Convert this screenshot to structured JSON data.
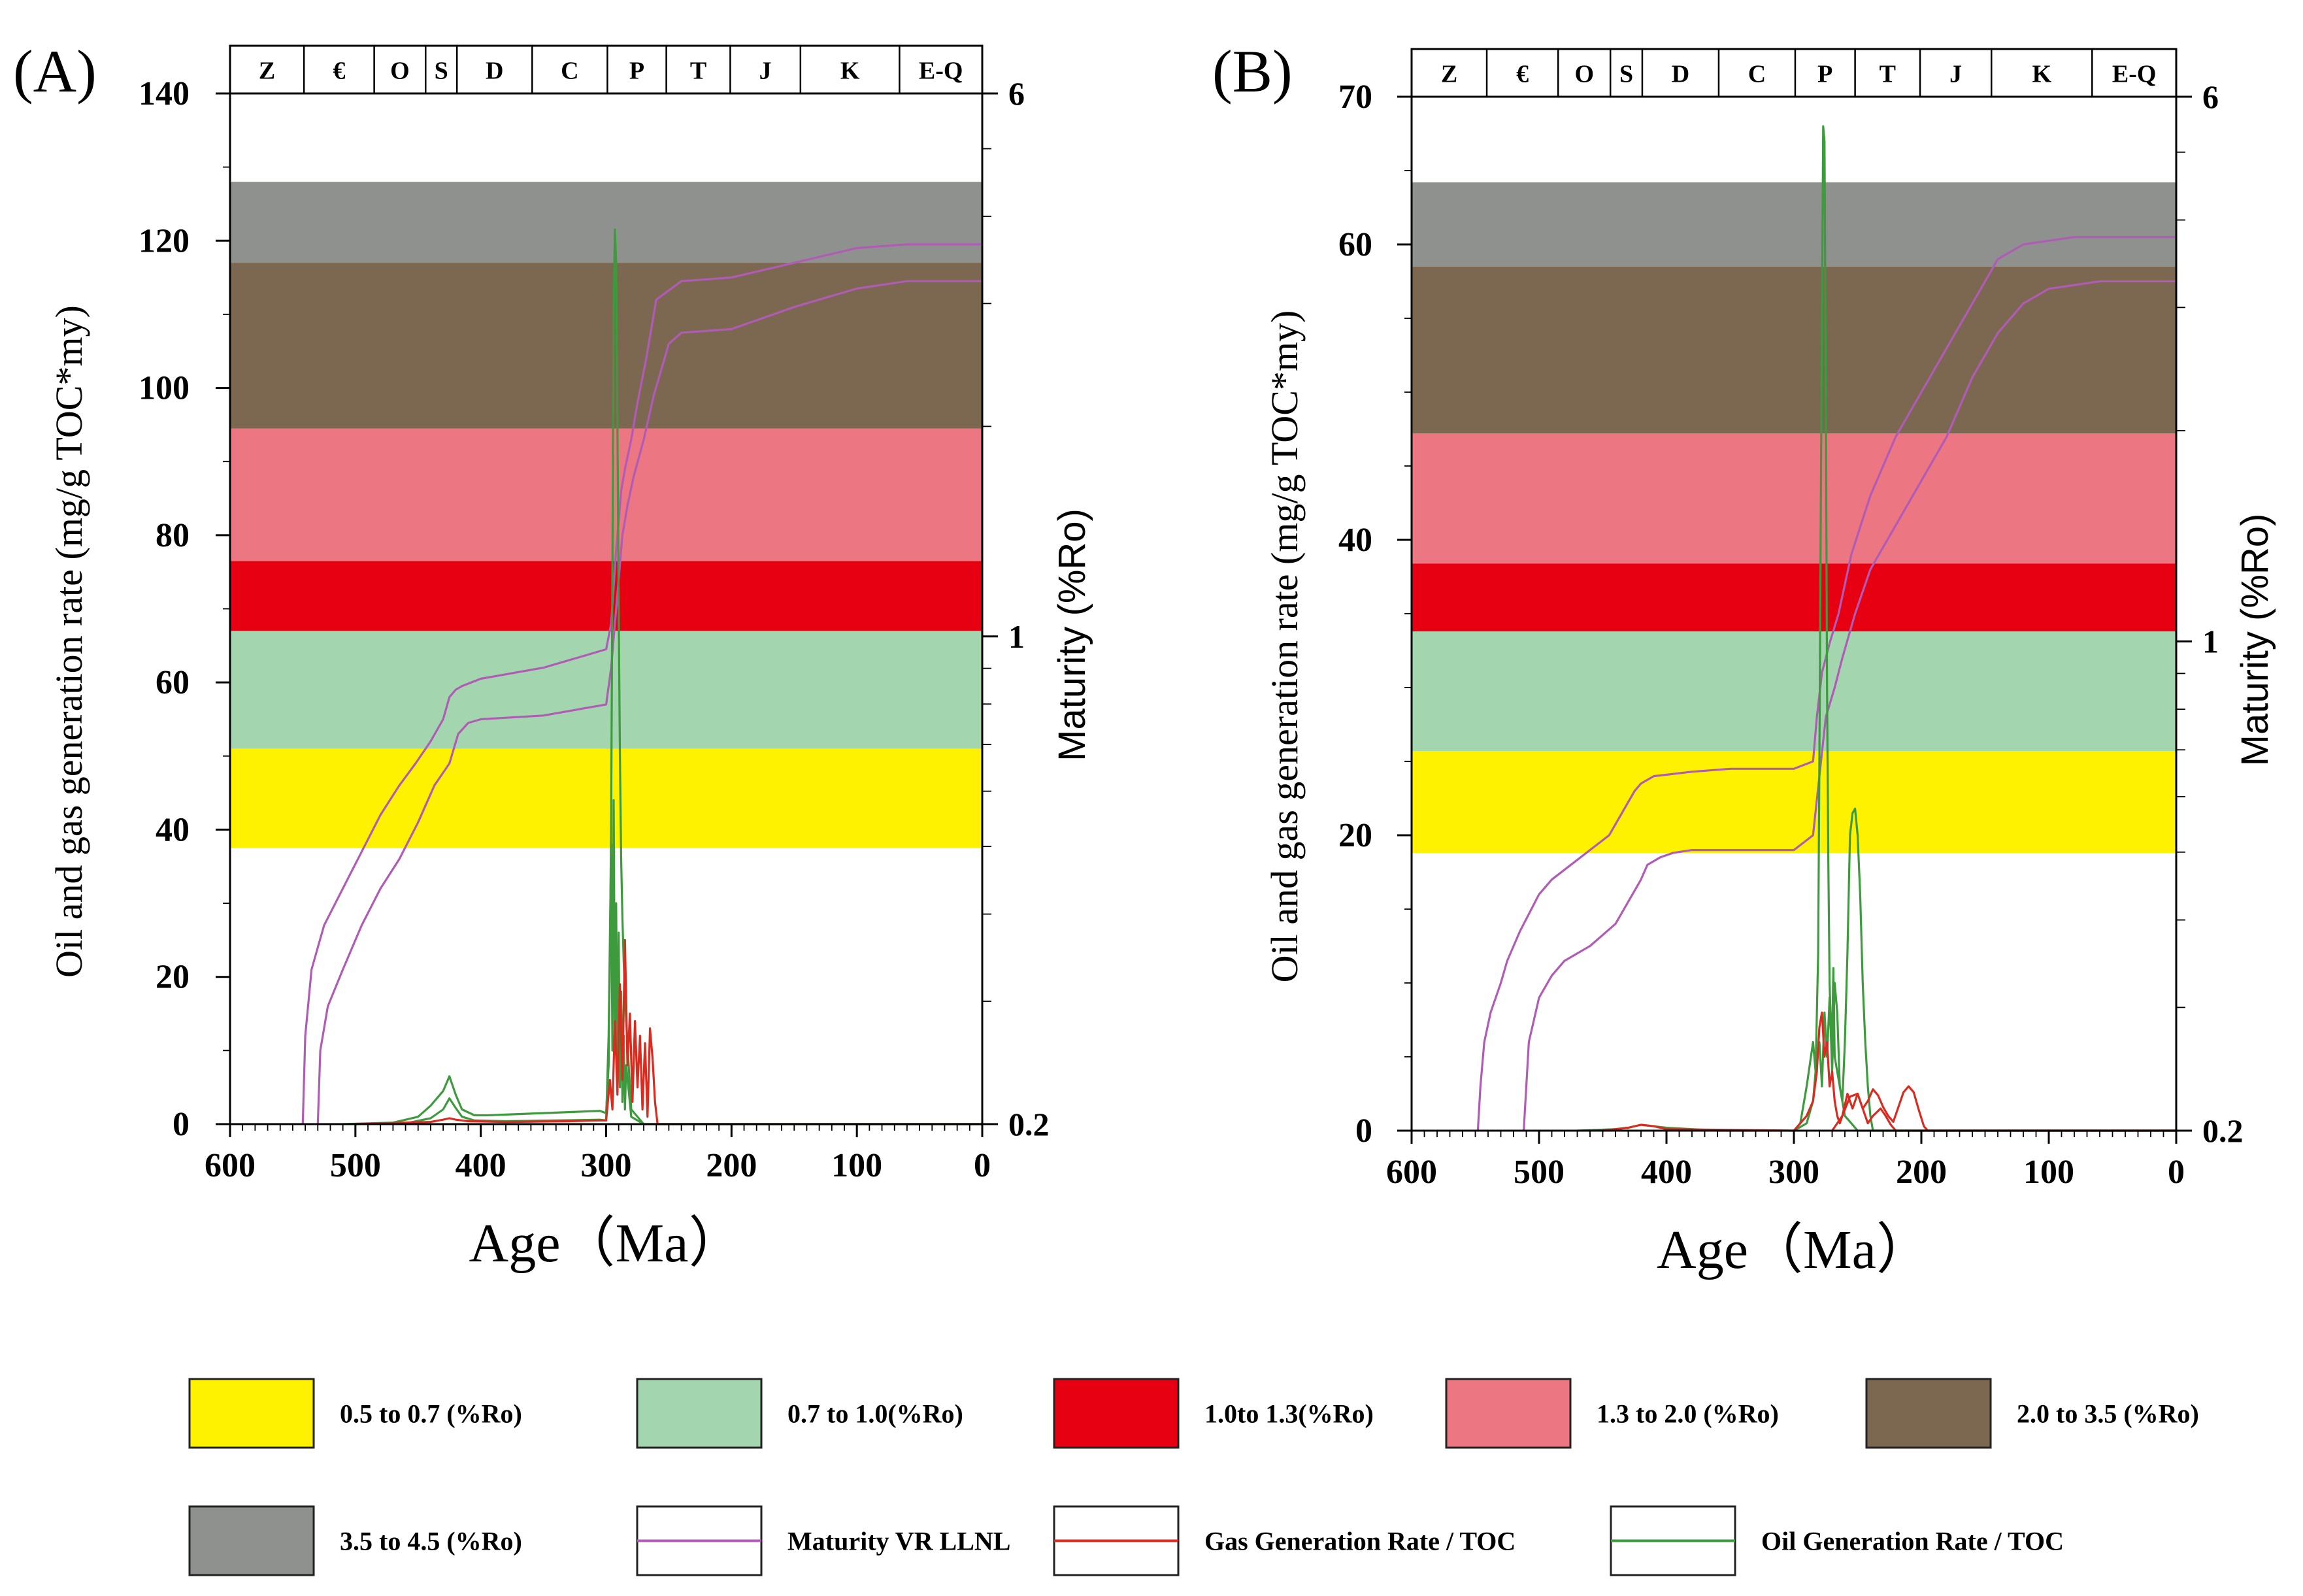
{
  "chart_data": [
    {
      "type": "line",
      "panel_label": "(A)",
      "title": "",
      "xlabel": "Age（Ma）",
      "ylabel": "Oil and gas generation rate (mg/g TOC*my)",
      "y2label": "Maturity (%Ro)",
      "xlim": [
        600,
        0
      ],
      "ylim": [
        0,
        140
      ],
      "y2lim": [
        0.2,
        6
      ],
      "y2scale": "log",
      "x_ticks": [
        "600",
        "500",
        "400",
        "300",
        "200",
        "100",
        "0"
      ],
      "y_ticks": [
        "0",
        "20",
        "40",
        "60",
        "80",
        "100",
        "120",
        "140"
      ],
      "y2_ticks": [
        "0.2",
        "1",
        "6"
      ],
      "periods": [
        {
          "label": "Z",
          "start": 635,
          "end": 541
        },
        {
          "label": "€",
          "start": 541,
          "end": 485
        },
        {
          "label": "O",
          "start": 485,
          "end": 444
        },
        {
          "label": "S",
          "start": 444,
          "end": 419
        },
        {
          "label": "D",
          "start": 419,
          "end": 359
        },
        {
          "label": "C",
          "start": 359,
          "end": 299
        },
        {
          "label": "P",
          "start": 299,
          "end": 252
        },
        {
          "label": "T",
          "start": 252,
          "end": 201
        },
        {
          "label": "J",
          "start": 201,
          "end": 145
        },
        {
          "label": "K",
          "start": 145,
          "end": 66
        },
        {
          "label": "E-Q",
          "start": 66,
          "end": 0
        }
      ],
      "bands": [
        {
          "name": "0.5 to 0.7 (%Ro)",
          "from": 37.5,
          "to": 51,
          "color": "#fff200"
        },
        {
          "name": "0.7 to 1.0(%Ro)",
          "from": 51,
          "to": 67,
          "color": "#a3d6ae"
        },
        {
          "name": "1.0to 1.3(%Ro)",
          "from": 67,
          "to": 76.5,
          "color": "#e60012"
        },
        {
          "name": "1.3 to 2.0 (%Ro)",
          "from": 76.5,
          "to": 94.5,
          "color": "#ec7682"
        },
        {
          "name": "2.0 to 3.5 (%Ro)",
          "from": 94.5,
          "to": 117,
          "color": "#7c6850"
        },
        {
          "name": "3.5 to 4.5 (%Ro)",
          "from": 117,
          "to": 128,
          "color": "#8e918d"
        }
      ],
      "series": [
        {
          "name": "Maturity VR LLNL (upper)",
          "color": "#b05bb5",
          "x": [
            542,
            540,
            535,
            525,
            510,
            495,
            480,
            465,
            452,
            440,
            430,
            425,
            420,
            415,
            400,
            350,
            300,
            296,
            294,
            292,
            290,
            288,
            285,
            280,
            275,
            268,
            260,
            240,
            200,
            150,
            100,
            60,
            0
          ],
          "y": [
            0,
            12,
            21,
            27,
            32,
            37,
            42,
            46,
            49,
            52,
            55,
            58,
            59,
            59.5,
            60.5,
            62,
            64.5,
            68,
            73,
            78,
            82,
            86,
            89,
            93,
            98,
            104,
            112,
            114.5,
            115,
            117,
            119,
            119.5,
            119.5
          ]
        },
        {
          "name": "Maturity VR LLNL (lower)",
          "color": "#b05bb5",
          "x": [
            530,
            528,
            522,
            510,
            495,
            480,
            465,
            450,
            437,
            425,
            418,
            410,
            400,
            350,
            300,
            296,
            293,
            290,
            287,
            283,
            278,
            270,
            262,
            250,
            240,
            200,
            150,
            100,
            60,
            0
          ],
          "y": [
            0,
            10,
            16,
            21,
            27,
            32,
            36,
            41,
            46,
            49,
            53,
            54.5,
            55,
            55.5,
            57,
            62,
            68,
            74,
            80,
            84,
            88,
            93,
            99,
            106,
            107.5,
            108,
            111,
            113.5,
            114.5,
            114.5
          ]
        },
        {
          "name": "Oil Generation Rate / TOC (a)",
          "color": "#3d9a3d",
          "x": [
            510,
            470,
            450,
            440,
            430,
            425,
            420,
            415,
            405,
            395,
            380,
            350,
            320,
            305,
            300,
            298,
            297,
            296,
            295,
            294,
            293,
            292,
            291,
            290,
            289,
            288,
            287,
            286,
            285,
            284,
            283,
            282,
            281,
            280,
            270,
            0
          ],
          "y": [
            0,
            0.2,
            1,
            2.5,
            4.5,
            6.5,
            4,
            2,
            1.2,
            1.2,
            1.3,
            1.5,
            1.7,
            1.8,
            1.5,
            8,
            22,
            42,
            75,
            110,
            121.5,
            117,
            95,
            70,
            50,
            36,
            28,
            22,
            18,
            14,
            11,
            8,
            5,
            2,
            0,
            0
          ]
        },
        {
          "name": "Oil Generation Rate / TOC (b)",
          "color": "#3d9a3d",
          "x": [
            500,
            460,
            440,
            430,
            425,
            420,
            415,
            405,
            380,
            340,
            305,
            300,
            298,
            296,
            295,
            294,
            293,
            292,
            291,
            290,
            289,
            288,
            287,
            286,
            285,
            284,
            280,
            270,
            0
          ],
          "y": [
            0,
            0.1,
            0.8,
            2,
            3.5,
            2.2,
            1,
            0.5,
            0.4,
            0.5,
            0.6,
            0.5,
            12,
            38,
            10,
            44,
            12,
            30,
            6,
            26,
            5,
            18,
            3,
            12,
            2,
            8,
            1,
            0,
            0
          ]
        },
        {
          "name": "Gas Generation Rate / TOC",
          "color": "#d92b1f",
          "x": [
            500,
            440,
            430,
            425,
            420,
            410,
            380,
            330,
            305,
            300,
            297,
            295,
            293,
            291,
            289,
            287,
            285,
            283,
            281,
            279,
            277,
            275,
            273,
            271,
            269,
            267,
            265,
            263,
            261,
            259,
            0
          ],
          "y": [
            0,
            0.3,
            0.6,
            0.8,
            0.6,
            0.4,
            0.3,
            0.4,
            0.5,
            0.5,
            6,
            2,
            14,
            4,
            19,
            6,
            25,
            8,
            15,
            3,
            14,
            5,
            12,
            2,
            11,
            1,
            13,
            9,
            3,
            0,
            0
          ]
        }
      ]
    },
    {
      "type": "line",
      "panel_label": "(B)",
      "title": "",
      "xlabel": "Age（Ma）",
      "ylabel": "Oil and gas generation rate (mg/g TOC*my)",
      "y2label": "Maturity (%Ro)",
      "xlim": [
        600,
        0
      ],
      "ylim": [
        0,
        70
      ],
      "y2lim": [
        0.2,
        6
      ],
      "y2scale": "log",
      "x_ticks": [
        "600",
        "500",
        "400",
        "300",
        "200",
        "100",
        "0"
      ],
      "y_ticks": [
        "0",
        "20",
        "40",
        "60",
        "70"
      ],
      "y2_ticks": [
        "0.2",
        "1",
        "6"
      ],
      "periods": [
        {
          "label": "Z",
          "start": 635,
          "end": 541
        },
        {
          "label": "€",
          "start": 541,
          "end": 485
        },
        {
          "label": "O",
          "start": 485,
          "end": 444
        },
        {
          "label": "S",
          "start": 444,
          "end": 419
        },
        {
          "label": "D",
          "start": 419,
          "end": 359
        },
        {
          "label": "C",
          "start": 359,
          "end": 299
        },
        {
          "label": "P",
          "start": 299,
          "end": 252
        },
        {
          "label": "T",
          "start": 252,
          "end": 201
        },
        {
          "label": "J",
          "start": 201,
          "end": 145
        },
        {
          "label": "K",
          "start": 145,
          "end": 66
        },
        {
          "label": "E-Q",
          "start": 66,
          "end": 0
        }
      ],
      "bands": [
        {
          "name": "0.5 to 0.7 (%Ro)",
          "from": 18.8,
          "to": 25.7,
          "color": "#fff200"
        },
        {
          "name": "0.7 to 1.0(%Ro)",
          "from": 25.7,
          "to": 33.8,
          "color": "#a3d6ae"
        },
        {
          "name": "1.0to 1.3(%Ro)",
          "from": 33.8,
          "to": 38.4,
          "color": "#e60012"
        },
        {
          "name": "1.3 to 2.0 (%Ro)",
          "from": 38.4,
          "to": 47.2,
          "color": "#ec7682"
        },
        {
          "name": "2.0 to 3.5 (%Ro)",
          "from": 47.2,
          "to": 58.5,
          "color": "#7c6850"
        },
        {
          "name": "3.5 to 4.5 (%Ro)",
          "from": 58.5,
          "to": 64.2,
          "color": "#8e918d"
        }
      ],
      "series": [
        {
          "name": "Maturity VR LLNL (upper)",
          "color": "#b05bb5",
          "x": [
            548,
            546,
            543,
            538,
            530,
            525,
            515,
            500,
            490,
            475,
            460,
            445,
            435,
            425,
            420,
            410,
            380,
            350,
            330,
            300,
            285,
            282,
            278,
            272,
            265,
            255,
            240,
            220,
            200,
            180,
            160,
            140,
            120,
            80,
            0
          ],
          "y": [
            0,
            3,
            6,
            8,
            10,
            11.5,
            13.5,
            16,
            17,
            18,
            19,
            20,
            21.5,
            23,
            23.5,
            24,
            24.3,
            24.5,
            24.5,
            24.5,
            25,
            28,
            31,
            33,
            35,
            39,
            43,
            47,
            50,
            53,
            56,
            59,
            60,
            60.5,
            60.5
          ]
        },
        {
          "name": "Maturity VR LLNL (lower)",
          "color": "#b05bb5",
          "x": [
            512,
            508,
            500,
            490,
            480,
            470,
            460,
            440,
            430,
            420,
            415,
            405,
            395,
            380,
            360,
            330,
            300,
            285,
            280,
            275,
            268,
            262,
            252,
            240,
            220,
            200,
            180,
            160,
            140,
            120,
            100,
            60,
            0
          ],
          "y": [
            0,
            6,
            9,
            10.5,
            11.5,
            12,
            12.5,
            14,
            15.5,
            17,
            18,
            18.5,
            18.8,
            19,
            19,
            19,
            19,
            20,
            24,
            28,
            30,
            32,
            35,
            38,
            41,
            44,
            47,
            51,
            54,
            56,
            57,
            57.5,
            57.5
          ]
        },
        {
          "name": "Oil Generation Rate / TOC (a)",
          "color": "#3d9a3d",
          "x": [
            470,
            440,
            430,
            420,
            410,
            400,
            380,
            360,
            300,
            295,
            290,
            285,
            283,
            281,
            280,
            279,
            278,
            277,
            276,
            275,
            274,
            273,
            272,
            271,
            270,
            269,
            268,
            266,
            264,
            262,
            260,
            255,
            250,
            0
          ],
          "y": [
            0,
            0.1,
            0.2,
            0.4,
            0.3,
            0.2,
            0.1,
            0,
            0,
            0.5,
            3,
            6,
            4,
            12,
            25,
            40,
            55,
            68,
            67,
            50,
            30,
            18,
            10,
            7,
            6,
            11,
            5,
            4,
            3,
            2,
            1,
            0.5,
            0,
            0
          ]
        },
        {
          "name": "Oil Generation Rate / TOC (b)",
          "color": "#3d9a3d",
          "x": [
            300,
            290,
            285,
            282,
            280,
            278,
            276,
            274,
            272,
            270,
            268,
            266,
            264,
            262,
            260,
            258,
            256,
            254,
            252,
            250,
            248,
            246,
            244,
            242,
            240,
            238,
            236,
            0
          ],
          "y": [
            0,
            0.5,
            2,
            5,
            6,
            3,
            8,
            5,
            9,
            4,
            10,
            8,
            3,
            2,
            6,
            12,
            20,
            21.5,
            21.8,
            20,
            16,
            10,
            6,
            3,
            1,
            0,
            0,
            0
          ]
        },
        {
          "name": "Gas Generation Rate / TOC",
          "color": "#d92b1f",
          "x": [
            450,
            430,
            420,
            410,
            400,
            300,
            290,
            285,
            282,
            280,
            278,
            276,
            274,
            272,
            270,
            268,
            266,
            264,
            262,
            258,
            254,
            250,
            246,
            242,
            238,
            234,
            230,
            226,
            222,
            218,
            214,
            210,
            206,
            202,
            198,
            195,
            0
          ],
          "y": [
            0,
            0.2,
            0.4,
            0.3,
            0.1,
            0,
            1,
            2,
            4,
            7,
            8,
            5,
            6,
            3,
            4,
            2,
            1,
            0.5,
            1,
            2.5,
            1.5,
            2.5,
            1.5,
            2,
            2.8,
            2.4,
            1.6,
            1,
            0.6,
            1.6,
            2.6,
            3,
            2.6,
            1.4,
            0.3,
            0,
            0
          ]
        },
        {
          "name": "Gas Generation Rate / TOC (b)",
          "color": "#d92b1f",
          "x": [
            270,
            262,
            256,
            250,
            246,
            242,
            238,
            232,
            228,
            224,
            220,
            0
          ],
          "y": [
            0,
            1,
            2.3,
            2.5,
            1.5,
            0.5,
            1,
            1.5,
            1,
            0.4,
            0,
            0
          ]
        }
      ]
    }
  ],
  "legend": [
    {
      "label": "0.5 to 0.7 (%Ro)",
      "kind": "box",
      "color": "#fff200"
    },
    {
      "label": "0.7 to 1.0(%Ro)",
      "kind": "box",
      "color": "#a3d6ae"
    },
    {
      "label": "1.0to 1.3(%Ro)",
      "kind": "box",
      "color": "#e60012"
    },
    {
      "label": "1.3 to 2.0 (%Ro)",
      "kind": "box",
      "color": "#ec7682"
    },
    {
      "label": "2.0 to 3.5 (%Ro)",
      "kind": "box",
      "color": "#7c6850"
    },
    {
      "label": "3.5 to 4.5 (%Ro)",
      "kind": "box",
      "color": "#8e918d"
    },
    {
      "label": "Maturity VR LLNL",
      "kind": "line",
      "color": "#b05bb5"
    },
    {
      "label": "Gas Generation Rate / TOC",
      "kind": "line",
      "color": "#d92b1f"
    },
    {
      "label": "Oil Generation Rate / TOC",
      "kind": "line",
      "color": "#3d9a3d"
    }
  ]
}
